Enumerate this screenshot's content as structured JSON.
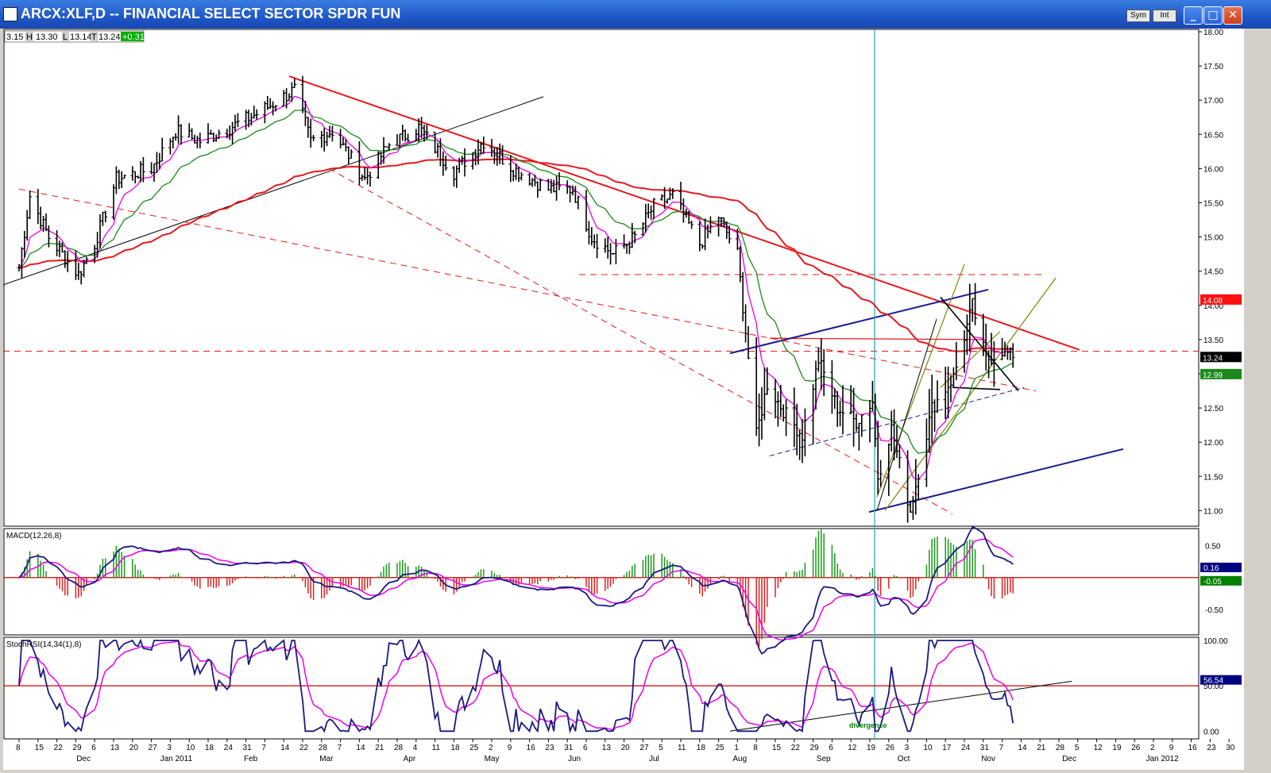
{
  "window": {
    "title": "ARCX:XLF,D -- FINANCIAL SELECT SECTOR SPDR FUN",
    "sym_label": "Sym",
    "int_label": "Int",
    "minimize_label": "_",
    "maximize_label": "□",
    "close_label": "✕"
  },
  "quote": {
    "open": "3.15",
    "high_tag": "H",
    "high": "13.30",
    "low_tag": "L",
    "low": "13.14",
    "close_tag": "T",
    "close": "13.24",
    "change": "+0.31"
  },
  "colors": {
    "price_bars": "#000000",
    "ema_fast": "#ee00ee",
    "ema_mid": "#1a8a1a",
    "ma_long": "#e8191e",
    "channel": "#e8191e",
    "blue_lines": "#1a1a90",
    "olive_lines": "#8a8a1a",
    "cursor": "#2aa0b0",
    "last_price_badge": "#000000",
    "ema_mid_badge": "#1a8a1a",
    "ma_badge": "#ff1010",
    "macd_badge": "#000080",
    "signal_badge": "#008000",
    "stoch_badge": "#000080"
  },
  "chart_data": [
    {
      "type": "line",
      "panel": "price",
      "y_axis_ticks": [
        "18.00",
        "17.50",
        "17.00",
        "16.50",
        "16.00",
        "15.50",
        "15.00",
        "14.50",
        "14.00",
        "13.50",
        "13.00",
        "12.50",
        "12.00",
        "11.50",
        "11.00"
      ],
      "ylim": [
        10.9,
        18.0
      ],
      "price_badges": [
        {
          "label": "14.08",
          "value": 14.08,
          "color": "#ff1010",
          "text": "#ffffff"
        },
        {
          "label": "13.24",
          "value": 13.24,
          "color": "#000000",
          "text": "#ffffff"
        },
        {
          "label": "12.99",
          "value": 12.99,
          "color": "#1a8a1a",
          "text": "#ffffff"
        }
      ],
      "x_ticks": [
        "8",
        "15",
        "22",
        "29",
        "6",
        "13",
        "20",
        "27",
        "3",
        "10",
        "18",
        "24",
        "31",
        "7",
        "14",
        "22",
        "28",
        "7",
        "14",
        "21",
        "28",
        "4",
        "11",
        "18",
        "25",
        "2",
        "9",
        "16",
        "23",
        "31",
        "6",
        "13",
        "20",
        "27",
        "5",
        "11",
        "18",
        "25",
        "1",
        "8",
        "15",
        "22",
        "29",
        "6",
        "12",
        "19",
        "26",
        "3",
        "10",
        "17",
        "24",
        "31",
        "7",
        "14",
        "21",
        "28",
        "5",
        "12",
        "19",
        "26",
        "2",
        "9",
        "16",
        "23",
        "30"
      ],
      "x_month_labels": [
        "Dec",
        "Jan 2011",
        "Feb",
        "Mar",
        "Apr",
        "May",
        "Jun",
        "Jul",
        "Aug",
        "Sep",
        "Oct",
        "Nov",
        "Dec",
        "Jan 2012"
      ],
      "price_keypoints": [
        {
          "date": "2010-11-08",
          "close": 14.55
        },
        {
          "date": "2010-11-12",
          "close": 15.6
        },
        {
          "date": "2010-11-19",
          "close": 15.0
        },
        {
          "date": "2010-11-30",
          "close": 14.45
        },
        {
          "date": "2010-12-06",
          "close": 14.9
        },
        {
          "date": "2010-12-14",
          "close": 15.85
        },
        {
          "date": "2010-12-27",
          "close": 16.0
        },
        {
          "date": "2011-01-05",
          "close": 16.55
        },
        {
          "date": "2011-01-14",
          "close": 16.4
        },
        {
          "date": "2011-01-25",
          "close": 16.6
        },
        {
          "date": "2011-02-04",
          "close": 16.8
        },
        {
          "date": "2011-02-18",
          "close": 17.15
        },
        {
          "date": "2011-02-24",
          "close": 16.4
        },
        {
          "date": "2011-03-04",
          "close": 16.55
        },
        {
          "date": "2011-03-16",
          "close": 15.85
        },
        {
          "date": "2011-03-25",
          "close": 16.35
        },
        {
          "date": "2011-04-05",
          "close": 16.6
        },
        {
          "date": "2011-04-18",
          "close": 15.95
        },
        {
          "date": "2011-04-29",
          "close": 16.4
        },
        {
          "date": "2011-05-10",
          "close": 16.0
        },
        {
          "date": "2011-05-23",
          "close": 15.7
        },
        {
          "date": "2011-06-01",
          "close": 15.7
        },
        {
          "date": "2011-06-08",
          "close": 15.0
        },
        {
          "date": "2011-06-16",
          "close": 14.75
        },
        {
          "date": "2011-06-24",
          "close": 15.0
        },
        {
          "date": "2011-07-01",
          "close": 15.45
        },
        {
          "date": "2011-07-08",
          "close": 15.6
        },
        {
          "date": "2011-07-18",
          "close": 14.9
        },
        {
          "date": "2011-07-25",
          "close": 15.3
        },
        {
          "date": "2011-08-01",
          "close": 14.75
        },
        {
          "date": "2011-08-08",
          "close": 12.1
        },
        {
          "date": "2011-08-12",
          "close": 12.85
        },
        {
          "date": "2011-08-19",
          "close": 12.4
        },
        {
          "date": "2011-08-25",
          "close": 12.1
        },
        {
          "date": "2011-08-31",
          "close": 13.2
        },
        {
          "date": "2011-09-07",
          "close": 12.5
        },
        {
          "date": "2011-09-14",
          "close": 12.3
        },
        {
          "date": "2011-09-20",
          "close": 12.6
        },
        {
          "date": "2011-09-22",
          "close": 11.5
        },
        {
          "date": "2011-09-27",
          "close": 12.2
        },
        {
          "date": "2011-10-04",
          "close": 11.0
        },
        {
          "date": "2011-10-12",
          "close": 12.5
        },
        {
          "date": "2011-10-20",
          "close": 12.95
        },
        {
          "date": "2011-10-27",
          "close": 14.0
        },
        {
          "date": "2011-11-01",
          "close": 13.2
        },
        {
          "date": "2011-11-07",
          "close": 13.35
        },
        {
          "date": "2011-11-11",
          "close": 13.24
        }
      ],
      "annotations": [
        "divergence"
      ]
    },
    {
      "type": "line",
      "panel": "macd",
      "title": "MACD(12,26,8)",
      "y_axis_ticks": [
        "0.50",
        "-0.50"
      ],
      "ylim": [
        -0.85,
        0.72
      ],
      "badges": [
        {
          "label": "0.16",
          "value": 0.16,
          "color": "#000080"
        },
        {
          "label": "-0.05",
          "value": -0.05,
          "color": "#008000"
        }
      ]
    },
    {
      "type": "line",
      "panel": "stochrsi",
      "title": "StochRSI(14,34(1),8)",
      "y_axis_ticks": [
        "100.00",
        "50.00",
        "0.00"
      ],
      "ylim": [
        -5,
        100
      ],
      "badges": [
        {
          "label": "56.54",
          "value": 56.54,
          "color": "#000080"
        }
      ]
    }
  ]
}
